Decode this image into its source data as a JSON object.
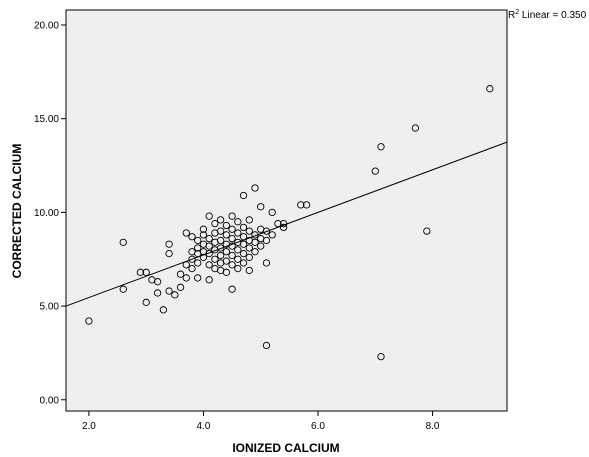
{
  "chart_data": {
    "type": "scatter",
    "title": "",
    "xlabel": "IONIZED CALCIUM",
    "ylabel": "CORRECTED CALCIUM",
    "xlim": [
      1.6,
      9.3
    ],
    "ylim": [
      -0.6,
      20.8
    ],
    "x_ticks": [
      "2.0",
      "4.0",
      "6.0",
      "8.0"
    ],
    "x_tick_values": [
      2,
      4,
      6,
      8
    ],
    "y_ticks": [
      "0.00",
      "5.00",
      "10.00",
      "15.00",
      "20.00"
    ],
    "y_tick_values": [
      0,
      5,
      10,
      15,
      20
    ],
    "grid": false,
    "plot_background": "#efefef",
    "marker": "open-circle",
    "fit_line": {
      "type": "linear",
      "label_prefix": "R",
      "label_sup": "2",
      "label_rest": " Linear = 0.350",
      "x1": 1.6,
      "y1": 5.0,
      "x2": 9.3,
      "y2": 13.75
    },
    "points": [
      [
        2.0,
        4.2
      ],
      [
        2.6,
        8.4
      ],
      [
        2.6,
        5.9
      ],
      [
        2.9,
        6.8
      ],
      [
        3.0,
        6.8
      ],
      [
        3.0,
        5.2
      ],
      [
        3.1,
        6.4
      ],
      [
        3.2,
        5.7
      ],
      [
        3.2,
        6.3
      ],
      [
        3.3,
        4.8
      ],
      [
        3.4,
        5.8
      ],
      [
        3.4,
        7.8
      ],
      [
        3.4,
        8.3
      ],
      [
        3.5,
        5.6
      ],
      [
        3.6,
        6.0
      ],
      [
        3.6,
        6.7
      ],
      [
        3.7,
        6.5
      ],
      [
        3.7,
        7.2
      ],
      [
        3.7,
        8.9
      ],
      [
        3.8,
        7.0
      ],
      [
        3.8,
        7.5
      ],
      [
        3.8,
        7.9
      ],
      [
        3.8,
        8.7
      ],
      [
        3.9,
        7.3
      ],
      [
        3.9,
        7.8
      ],
      [
        3.9,
        8.1
      ],
      [
        3.9,
        8.5
      ],
      [
        3.9,
        6.5
      ],
      [
        4.0,
        7.6
      ],
      [
        4.0,
        7.9
      ],
      [
        4.0,
        8.3
      ],
      [
        4.0,
        8.8
      ],
      [
        4.0,
        9.1
      ],
      [
        4.1,
        7.2
      ],
      [
        4.1,
        7.8
      ],
      [
        4.1,
        8.2
      ],
      [
        4.1,
        8.6
      ],
      [
        4.1,
        9.8
      ],
      [
        4.1,
        6.4
      ],
      [
        4.2,
        7.5
      ],
      [
        4.2,
        8.0
      ],
      [
        4.2,
        8.4
      ],
      [
        4.2,
        8.9
      ],
      [
        4.2,
        9.4
      ],
      [
        4.2,
        7.0
      ],
      [
        4.3,
        7.3
      ],
      [
        4.3,
        7.7
      ],
      [
        4.3,
        8.1
      ],
      [
        4.3,
        8.5
      ],
      [
        4.3,
        9.0
      ],
      [
        4.3,
        9.6
      ],
      [
        4.3,
        6.9
      ],
      [
        4.4,
        7.4
      ],
      [
        4.4,
        7.9
      ],
      [
        4.4,
        8.3
      ],
      [
        4.4,
        8.8
      ],
      [
        4.4,
        9.3
      ],
      [
        4.4,
        6.8
      ],
      [
        4.5,
        7.2
      ],
      [
        4.5,
        7.7
      ],
      [
        4.5,
        8.2
      ],
      [
        4.5,
        8.6
      ],
      [
        4.5,
        9.1
      ],
      [
        4.5,
        9.8
      ],
      [
        4.5,
        5.9
      ],
      [
        4.6,
        7.5
      ],
      [
        4.6,
        8.0
      ],
      [
        4.6,
        8.4
      ],
      [
        4.6,
        8.9
      ],
      [
        4.6,
        9.5
      ],
      [
        4.6,
        7.0
      ],
      [
        4.7,
        7.3
      ],
      [
        4.7,
        7.8
      ],
      [
        4.7,
        8.3
      ],
      [
        4.7,
        8.7
      ],
      [
        4.7,
        9.2
      ],
      [
        4.7,
        10.9
      ],
      [
        4.8,
        7.6
      ],
      [
        4.8,
        8.1
      ],
      [
        4.8,
        8.5
      ],
      [
        4.8,
        9.0
      ],
      [
        4.8,
        9.6
      ],
      [
        4.8,
        6.9
      ],
      [
        4.9,
        7.9
      ],
      [
        4.9,
        8.4
      ],
      [
        4.9,
        8.8
      ],
      [
        4.9,
        11.3
      ],
      [
        5.0,
        8.2
      ],
      [
        5.0,
        8.6
      ],
      [
        5.0,
        9.1
      ],
      [
        5.0,
        10.3
      ],
      [
        5.1,
        7.3
      ],
      [
        5.1,
        8.5
      ],
      [
        5.1,
        9.0
      ],
      [
        5.2,
        8.8
      ],
      [
        5.2,
        10.0
      ],
      [
        5.3,
        9.4
      ],
      [
        5.4,
        9.2
      ],
      [
        5.4,
        9.4
      ],
      [
        5.7,
        10.4
      ],
      [
        5.8,
        10.4
      ],
      [
        5.1,
        2.9
      ],
      [
        7.0,
        12.2
      ],
      [
        7.1,
        13.5
      ],
      [
        7.1,
        2.3
      ],
      [
        7.7,
        14.5
      ],
      [
        7.9,
        9.0
      ],
      [
        9.0,
        16.6
      ]
    ]
  }
}
